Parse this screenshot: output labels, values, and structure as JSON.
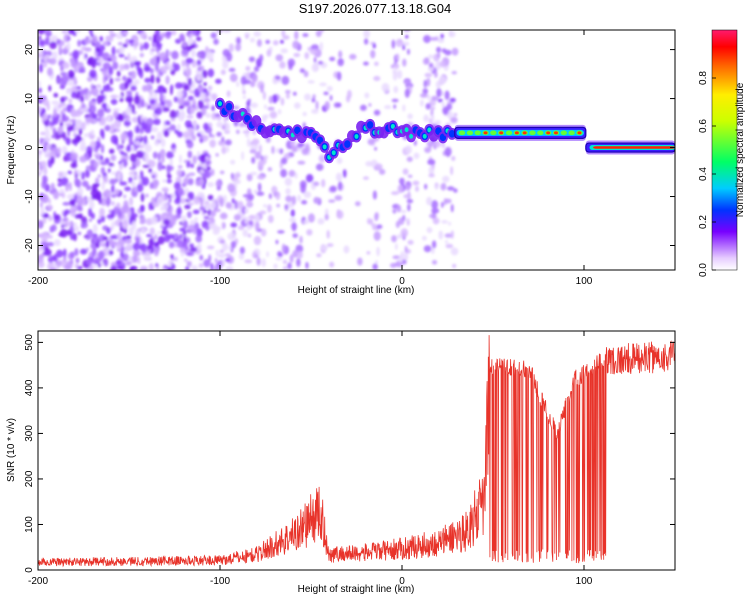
{
  "title": "S197.2026.077.13.18.G04",
  "chart_data": [
    {
      "type": "heatmap",
      "xlabel": "Height of straight line (km)",
      "ylabel": "Frequency (Hz)",
      "xlim": [
        -200,
        150
      ],
      "ylim": [
        -25,
        24
      ],
      "xticks": [
        -200,
        -100,
        0,
        100
      ],
      "yticks": [
        -20,
        -10,
        0,
        10,
        20
      ],
      "colorbar": {
        "label": "Normalized spectral amplitude",
        "range": [
          0,
          1
        ],
        "ticks": [
          0.0,
          0.2,
          0.4,
          0.6,
          0.8
        ]
      },
      "ridge": [
        {
          "x": -100,
          "y": 8
        },
        {
          "x": -90,
          "y": 7
        },
        {
          "x": -80,
          "y": 5
        },
        {
          "x": -70,
          "y": 3
        },
        {
          "x": -60,
          "y": 3
        },
        {
          "x": -50,
          "y": 2
        },
        {
          "x": -40,
          "y": -1
        },
        {
          "x": -25,
          "y": 3
        },
        {
          "x": -15,
          "y": 4
        },
        {
          "x": 0,
          "y": 3
        },
        {
          "x": 15,
          "y": 3
        },
        {
          "x": 30,
          "y": 3
        },
        {
          "x": 60,
          "y": 3
        },
        {
          "x": 100,
          "y": 3
        },
        {
          "x": 102,
          "y": 0
        },
        {
          "x": 150,
          "y": 0
        }
      ]
    },
    {
      "type": "line",
      "xlabel": "Height of straight line (km)",
      "ylabel": "SNR (10 * v/v)",
      "xlim": [
        -200,
        150
      ],
      "ylim": [
        0,
        525
      ],
      "xticks": [
        -200,
        -100,
        0,
        100
      ],
      "yticks": [
        0,
        100,
        200,
        300,
        400,
        500
      ],
      "color": "#e8332a",
      "envelope": [
        {
          "x": -200,
          "y": 20
        },
        {
          "x": -100,
          "y": 25
        },
        {
          "x": -80,
          "y": 40
        },
        {
          "x": -60,
          "y": 90
        },
        {
          "x": -45,
          "y": 150
        },
        {
          "x": -40,
          "y": 40
        },
        {
          "x": -20,
          "y": 45
        },
        {
          "x": 0,
          "y": 55
        },
        {
          "x": 20,
          "y": 70
        },
        {
          "x": 35,
          "y": 100
        },
        {
          "x": 45,
          "y": 170
        },
        {
          "x": 48,
          "y": 450
        },
        {
          "x": 70,
          "y": 440
        },
        {
          "x": 85,
          "y": 300
        },
        {
          "x": 95,
          "y": 420
        },
        {
          "x": 110,
          "y": 460
        },
        {
          "x": 150,
          "y": 470
        }
      ]
    }
  ]
}
